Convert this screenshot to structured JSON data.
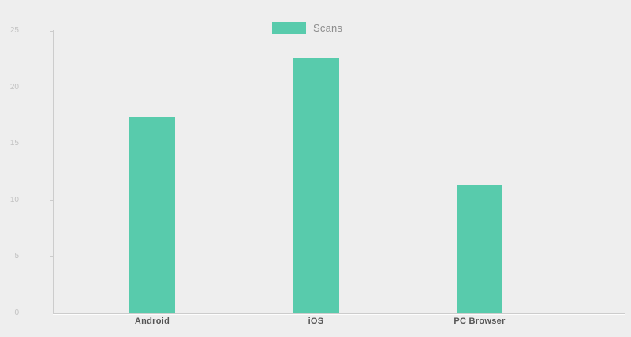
{
  "chart_data": {
    "type": "bar",
    "title": "",
    "categories": [
      "Android",
      "iOS",
      "PC Browser"
    ],
    "series": [
      {
        "name": "Scans",
        "values": [
          17.4,
          22.6,
          11.3
        ]
      }
    ],
    "ylim": [
      0,
      25
    ],
    "yticks": [
      0,
      5,
      10,
      15,
      20,
      25
    ],
    "grid": false,
    "legend_position": "top-center",
    "bar_color": "#58CBAC"
  },
  "colors": {
    "bar": "#58CBAC",
    "axis-line": "#cccccc",
    "tick-label": "#c2c2c2",
    "category-label": "#555555",
    "legend-label": "#8c8c8c",
    "background": "#eeeeee"
  }
}
